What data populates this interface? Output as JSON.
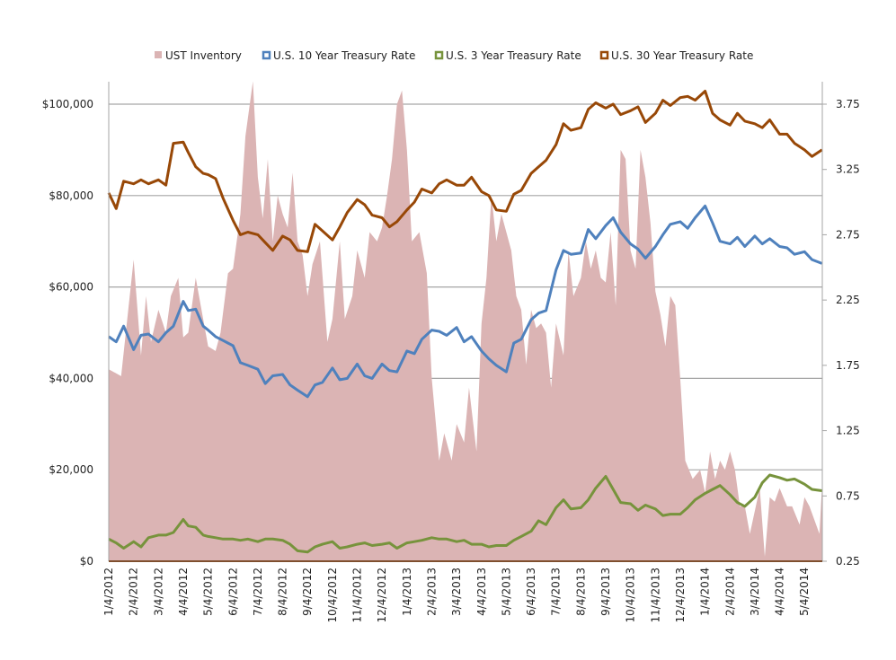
{
  "chart_data": {
    "type": "area+line",
    "title": "",
    "legend_position": "top",
    "legend": [
      {
        "name": "UST Inventory",
        "color": "#dbb4b4",
        "kind": "area"
      },
      {
        "name": "U.S. 10 Year Treasury Rate",
        "color": "#4f81bd",
        "kind": "line"
      },
      {
        "name": "U.S. 3 Year Treasury Rate",
        "color": "#77933c",
        "kind": "line"
      },
      {
        "name": "U.S. 30 Year Treasury Rate",
        "color": "#984807",
        "kind": "line"
      }
    ],
    "x_ticks": [
      "1/4/2012",
      "2/4/2012",
      "3/4/2012",
      "4/4/2012",
      "5/4/2012",
      "6/4/2012",
      "7/4/2012",
      "8/4/2012",
      "9/4/2012",
      "10/4/2012",
      "11/4/2012",
      "12/4/2012",
      "1/4/2013",
      "2/4/2013",
      "3/4/2013",
      "4/4/2013",
      "5/4/2013",
      "6/4/2013",
      "7/4/2013",
      "8/4/2013",
      "9/4/2013",
      "10/4/2013",
      "11/4/2013",
      "12/4/2013",
      "1/4/2014",
      "2/4/2014",
      "3/4/2014",
      "4/4/2014",
      "5/4/2014"
    ],
    "x_range_months": [
      0,
      28.7
    ],
    "y_left": {
      "label": "",
      "ticks": [
        "$0",
        "$20,000",
        "$40,000",
        "$60,000",
        "$80,000",
        "$100,000"
      ],
      "range": [
        0,
        100000
      ]
    },
    "y_right": {
      "label": "",
      "ticks": [
        "0.25",
        "0.75",
        "1.25",
        "1.75",
        "2.25",
        "2.75",
        "3.25",
        "3.75"
      ],
      "range": [
        0.25,
        3.75
      ]
    },
    "gridlines": [
      0,
      20000,
      40000,
      60000,
      80000,
      100000
    ],
    "series": [
      {
        "name": "UST Inventory",
        "axis": "left",
        "x_months": [
          0,
          0.5,
          1,
          1.3,
          1.5,
          1.7,
          2,
          2.3,
          2.5,
          2.8,
          3,
          3.2,
          3.5,
          3.7,
          4,
          4.3,
          4.5,
          4.8,
          5,
          5.3,
          5.5,
          5.8,
          6,
          6.2,
          6.4,
          6.6,
          6.8,
          7,
          7.2,
          7.4,
          7.6,
          7.8,
          8,
          8.2,
          8.5,
          8.8,
          9,
          9.3,
          9.5,
          9.8,
          10,
          10.3,
          10.5,
          10.8,
          11,
          11.2,
          11.4,
          11.6,
          11.8,
          12,
          12.2,
          12.5,
          12.8,
          13,
          13.3,
          13.5,
          13.8,
          14,
          14.3,
          14.5,
          14.8,
          15,
          15.2,
          15.4,
          15.6,
          15.8,
          16,
          16.2,
          16.4,
          16.6,
          16.8,
          17,
          17.2,
          17.4,
          17.6,
          17.8,
          18,
          18.3,
          18.5,
          18.7,
          19,
          19.2,
          19.4,
          19.6,
          19.8,
          20,
          20.2,
          20.4,
          20.6,
          20.8,
          21,
          21.2,
          21.4,
          21.6,
          21.8,
          22,
          22.2,
          22.4,
          22.6,
          22.8,
          23,
          23.2,
          23.5,
          23.8,
          24,
          24.2,
          24.4,
          24.6,
          24.8,
          25,
          25.2,
          25.4,
          25.6,
          25.8,
          26,
          26.2,
          26.4,
          26.6,
          26.8,
          27,
          27.3,
          27.5,
          27.8,
          28,
          28.2,
          28.4,
          28.6,
          28.7
        ],
        "values": [
          42000,
          40500,
          66000,
          45000,
          58000,
          48000,
          55000,
          50000,
          58000,
          62000,
          49000,
          50000,
          62000,
          56000,
          47000,
          46000,
          50000,
          63000,
          64000,
          76000,
          93000,
          105000,
          84000,
          75000,
          88000,
          70000,
          80000,
          76000,
          73000,
          85000,
          70000,
          67000,
          58000,
          65000,
          70000,
          48000,
          53000,
          70000,
          53000,
          58000,
          68000,
          62000,
          72000,
          70000,
          73000,
          80000,
          88000,
          100000,
          103000,
          90000,
          70000,
          72000,
          63000,
          40000,
          22000,
          28000,
          22000,
          30000,
          26000,
          38000,
          24000,
          52000,
          62000,
          80000,
          70000,
          76000,
          72000,
          68000,
          58000,
          55000,
          43000,
          55000,
          51000,
          52000,
          50000,
          38000,
          52000,
          45000,
          68000,
          58000,
          62000,
          70000,
          64000,
          68000,
          62000,
          61000,
          72000,
          56000,
          90000,
          88000,
          68000,
          64000,
          90000,
          84000,
          74000,
          59000,
          54000,
          47000,
          58000,
          56000,
          40000,
          22000,
          18000,
          20000,
          15000,
          24000,
          18000,
          22000,
          20000,
          24000,
          20000,
          12000,
          12000,
          6000,
          11000,
          16000,
          1000,
          14000,
          13000,
          16000,
          12000,
          12000,
          8000,
          14000,
          12000,
          9000,
          6000,
          16000
        ],
        "note": "approximate readings"
      },
      {
        "name": "U.S. 10 Year Treasury Rate",
        "axis": "right",
        "x_months": [
          0,
          0.3,
          0.6,
          1,
          1.3,
          1.6,
          2,
          2.3,
          2.6,
          3,
          3.2,
          3.5,
          3.8,
          4,
          4.3,
          4.6,
          5,
          5.3,
          5.6,
          6,
          6.3,
          6.6,
          7,
          7.3,
          7.6,
          8,
          8.3,
          8.6,
          9,
          9.3,
          9.6,
          10,
          10.3,
          10.6,
          11,
          11.3,
          11.6,
          12,
          12.3,
          12.6,
          13,
          13.3,
          13.6,
          14,
          14.3,
          14.6,
          15,
          15.3,
          15.6,
          16,
          16.3,
          16.6,
          17,
          17.3,
          17.6,
          18,
          18.3,
          18.6,
          19,
          19.3,
          19.6,
          20,
          20.3,
          20.6,
          21,
          21.3,
          21.6,
          22,
          22.3,
          22.6,
          23,
          23.3,
          23.6,
          24,
          24.3,
          24.6,
          25,
          25.3,
          25.6,
          26,
          26.3,
          26.6,
          27,
          27.3,
          27.6,
          28,
          28.3,
          28.7
        ],
        "values": [
          1.97,
          1.93,
          2.05,
          1.87,
          1.98,
          1.99,
          1.93,
          2.0,
          2.05,
          2.24,
          2.17,
          2.18,
          2.05,
          2.02,
          1.97,
          1.94,
          1.9,
          1.77,
          1.75,
          1.72,
          1.61,
          1.67,
          1.68,
          1.6,
          1.56,
          1.51,
          1.6,
          1.62,
          1.73,
          1.64,
          1.65,
          1.76,
          1.67,
          1.65,
          1.76,
          1.71,
          1.7,
          1.86,
          1.84,
          1.95,
          2.02,
          2.01,
          1.98,
          2.04,
          1.93,
          1.97,
          1.86,
          1.8,
          1.75,
          1.7,
          1.92,
          1.95,
          2.1,
          2.15,
          2.17,
          2.48,
          2.63,
          2.6,
          2.61,
          2.79,
          2.72,
          2.82,
          2.88,
          2.77,
          2.68,
          2.64,
          2.57,
          2.66,
          2.75,
          2.83,
          2.85,
          2.8,
          2.88,
          2.97,
          2.84,
          2.7,
          2.68,
          2.73,
          2.66,
          2.74,
          2.68,
          2.72,
          2.66,
          2.65,
          2.6,
          2.62,
          2.56,
          2.53
        ],
        "note": "approximate readings"
      },
      {
        "name": "U.S. 3 Year Treasury Rate",
        "axis": "right",
        "x_months": [
          0,
          0.3,
          0.6,
          1,
          1.3,
          1.6,
          2,
          2.3,
          2.6,
          3,
          3.2,
          3.5,
          3.8,
          4,
          4.3,
          4.6,
          5,
          5.3,
          5.6,
          6,
          6.3,
          6.6,
          7,
          7.3,
          7.6,
          8,
          8.3,
          8.6,
          9,
          9.3,
          9.6,
          10,
          10.3,
          10.6,
          11,
          11.3,
          11.6,
          12,
          12.3,
          12.6,
          13,
          13.3,
          13.6,
          14,
          14.3,
          14.6,
          15,
          15.3,
          15.6,
          16,
          16.3,
          16.6,
          17,
          17.3,
          17.6,
          18,
          18.3,
          18.6,
          19,
          19.3,
          19.6,
          20,
          20.3,
          20.6,
          21,
          21.3,
          21.6,
          22,
          22.3,
          22.6,
          23,
          23.3,
          23.6,
          24,
          24.3,
          24.6,
          25,
          25.3,
          25.6,
          26,
          26.3,
          26.6,
          27,
          27.3,
          27.6,
          28,
          28.3,
          28.7
        ],
        "values": [
          0.42,
          0.39,
          0.35,
          0.4,
          0.36,
          0.43,
          0.45,
          0.45,
          0.47,
          0.57,
          0.52,
          0.51,
          0.45,
          0.44,
          0.43,
          0.42,
          0.42,
          0.41,
          0.42,
          0.4,
          0.42,
          0.42,
          0.41,
          0.38,
          0.33,
          0.32,
          0.36,
          0.38,
          0.4,
          0.35,
          0.36,
          0.38,
          0.39,
          0.37,
          0.38,
          0.39,
          0.35,
          0.39,
          0.4,
          0.41,
          0.43,
          0.42,
          0.42,
          0.4,
          0.41,
          0.38,
          0.38,
          0.36,
          0.37,
          0.37,
          0.41,
          0.44,
          0.48,
          0.56,
          0.53,
          0.66,
          0.72,
          0.65,
          0.66,
          0.72,
          0.81,
          0.9,
          0.8,
          0.7,
          0.69,
          0.64,
          0.68,
          0.65,
          0.6,
          0.61,
          0.61,
          0.66,
          0.72,
          0.77,
          0.8,
          0.83,
          0.76,
          0.7,
          0.67,
          0.74,
          0.85,
          0.91,
          0.89,
          0.87,
          0.88,
          0.84,
          0.8,
          0.79,
          0.77
        ],
        "note": "approximate readings"
      },
      {
        "name": "U.S. 30 Year Treasury Rate",
        "axis": "right",
        "x_months": [
          0,
          0.3,
          0.6,
          1,
          1.3,
          1.6,
          2,
          2.3,
          2.6,
          3,
          3.2,
          3.5,
          3.8,
          4,
          4.3,
          4.6,
          5,
          5.3,
          5.6,
          6,
          6.3,
          6.6,
          7,
          7.3,
          7.6,
          8,
          8.3,
          8.6,
          9,
          9.3,
          9.6,
          10,
          10.3,
          10.6,
          11,
          11.3,
          11.6,
          12,
          12.3,
          12.6,
          13,
          13.3,
          13.6,
          14,
          14.3,
          14.6,
          15,
          15.3,
          15.6,
          16,
          16.3,
          16.6,
          17,
          17.3,
          17.6,
          18,
          18.3,
          18.6,
          19,
          19.3,
          19.6,
          20,
          20.3,
          20.6,
          21,
          21.3,
          21.6,
          22,
          22.3,
          22.6,
          23,
          23.3,
          23.6,
          24,
          24.3,
          24.6,
          25,
          25.3,
          25.6,
          26,
          26.3,
          26.6,
          27,
          27.3,
          27.6,
          28,
          28.3,
          28.7
        ],
        "values": [
          3.07,
          2.95,
          3.16,
          3.14,
          3.17,
          3.14,
          3.17,
          3.13,
          3.45,
          3.46,
          3.38,
          3.27,
          3.22,
          3.21,
          3.18,
          3.03,
          2.86,
          2.75,
          2.77,
          2.75,
          2.69,
          2.63,
          2.74,
          2.71,
          2.63,
          2.62,
          2.83,
          2.78,
          2.71,
          2.81,
          2.92,
          3.02,
          2.98,
          2.9,
          2.88,
          2.81,
          2.85,
          2.94,
          3.0,
          3.1,
          3.07,
          3.14,
          3.17,
          3.13,
          3.13,
          3.19,
          3.08,
          3.05,
          2.94,
          2.93,
          3.06,
          3.09,
          3.22,
          3.27,
          3.32,
          3.44,
          3.6,
          3.55,
          3.57,
          3.71,
          3.76,
          3.72,
          3.75,
          3.67,
          3.7,
          3.73,
          3.61,
          3.68,
          3.78,
          3.74,
          3.8,
          3.81,
          3.78,
          3.85,
          3.68,
          3.63,
          3.59,
          3.68,
          3.62,
          3.6,
          3.57,
          3.63,
          3.52,
          3.52,
          3.45,
          3.4,
          3.35,
          3.4,
          3.37
        ],
        "note": "approximate readings"
      }
    ]
  }
}
